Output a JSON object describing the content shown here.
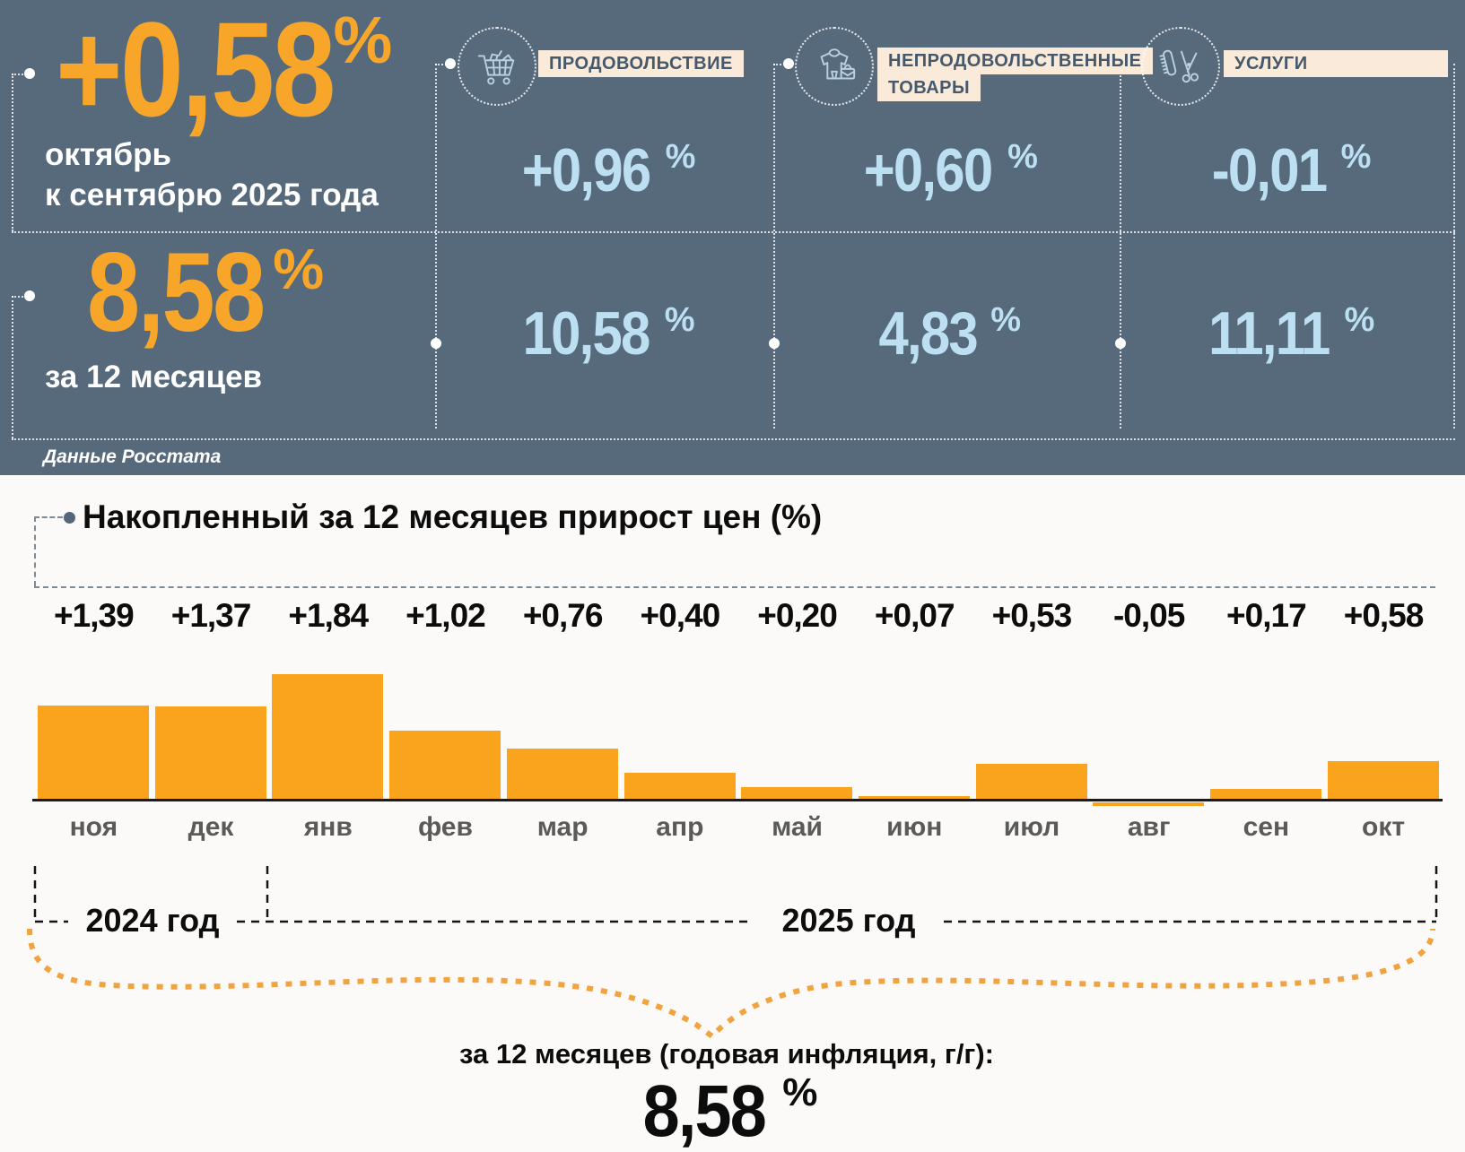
{
  "colors": {
    "header_bg": "#566A7C",
    "accent_orange": "#F7A62A",
    "value_blue": "#BCE0F2",
    "tag_cream": "#F9EAD9",
    "brace_orange": "#F1A33F"
  },
  "header": {
    "monthly": {
      "value": "+0,58",
      "unit": "%",
      "period_line1": "октябрь",
      "period_line2": "к сентябрю 2025 года"
    },
    "annual": {
      "value": "8,58",
      "unit": "%",
      "label": "за 12 месяцев"
    },
    "source": "Данные Росстата",
    "categories": [
      {
        "icon": "cart-icon",
        "label": "ПРОДОВОЛЬСТВИЕ",
        "label2": "",
        "monthly": "+0,96",
        "annual": "10,58",
        "unit": "%"
      },
      {
        "icon": "clothes-icon",
        "label": "НЕПРОДОВОЛЬСТВЕННЫЕ",
        "label2": "ТОВАРЫ",
        "monthly": "+0,60",
        "annual": "4,83",
        "unit": "%"
      },
      {
        "icon": "services-icon",
        "label": "УСЛУГИ",
        "label2": "",
        "monthly": "-0,01",
        "annual": "11,11",
        "unit": "%"
      }
    ]
  },
  "chart_data": {
    "type": "bar",
    "title": "Накопленный за 12 месяцев прирост цен (%)",
    "categories": [
      "ноя",
      "дек",
      "янв",
      "фев",
      "мар",
      "апр",
      "май",
      "июн",
      "июл",
      "авг",
      "сен",
      "окт"
    ],
    "values": [
      1.39,
      1.37,
      1.84,
      1.02,
      0.76,
      0.4,
      0.2,
      0.07,
      0.53,
      -0.05,
      0.17,
      0.58
    ],
    "value_labels": [
      "+1,39",
      "+1,37",
      "+1,84",
      "+1,02",
      "+0,76",
      "+0,40",
      "+0,20",
      "+0,07",
      "+0,53",
      "-0,05",
      "+0,17",
      "+0,58"
    ],
    "bar_color": "#FAA41E",
    "xlabel": "",
    "ylabel": "",
    "ylim": [
      -0.1,
      2.0
    ],
    "grid": false,
    "legend": "none",
    "year_groups": [
      {
        "label": "2024 год",
        "span": [
          "ноя",
          "дек"
        ]
      },
      {
        "label": "2025 год",
        "span": [
          "янв",
          "окт"
        ]
      }
    ]
  },
  "footer": {
    "label": "за 12 месяцев (годовая инфляция, г/г):",
    "value": "8,58",
    "unit": "%"
  }
}
